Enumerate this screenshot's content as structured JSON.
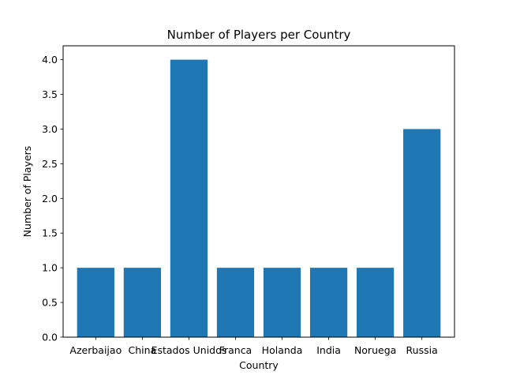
{
  "chart_data": {
    "type": "bar",
    "title": "Number of Players per Country",
    "xlabel": "Country",
    "ylabel": "Number of Players",
    "categories": [
      "Azerbaijao",
      "China",
      "Estados Unidos",
      "Franca",
      "Holanda",
      "India",
      "Noruega",
      "Russia"
    ],
    "values": [
      1,
      1,
      4,
      1,
      1,
      1,
      1,
      3
    ],
    "ylim": [
      0,
      4.2
    ],
    "yticks": [
      "0.0",
      "0.5",
      "1.0",
      "1.5",
      "2.0",
      "2.5",
      "3.0",
      "3.5",
      "4.0"
    ],
    "bar_color": "#1f77b4",
    "grid": false,
    "legend": "none"
  }
}
